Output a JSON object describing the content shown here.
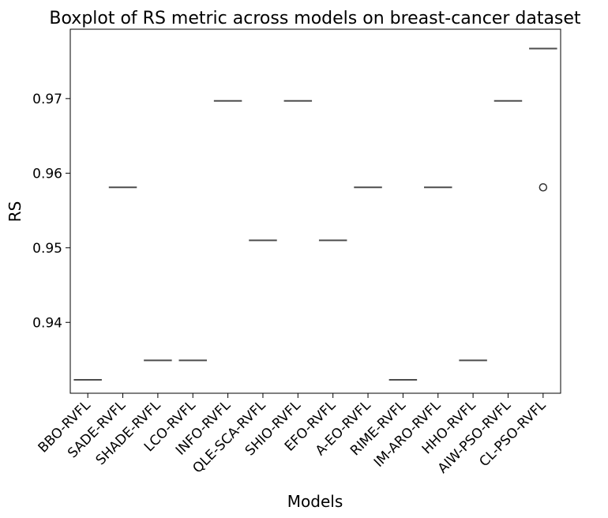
{
  "chart_data": {
    "type": "box",
    "title": "Boxplot of RS metric across models on breast-cancer dataset",
    "xlabel": "Models",
    "ylabel": "RS",
    "ylim": [
      0.9305,
      0.9793
    ],
    "yticks": [
      "0.94",
      "0.95",
      "0.96",
      "0.97"
    ],
    "ytick_values": [
      0.94,
      0.95,
      0.96,
      0.97
    ],
    "categories": [
      "BBO-RVFL",
      "SADE-RVFL",
      "SHADE-RVFL",
      "LCO-RVFL",
      "INFO-RVFL",
      "QLE-SCA-RVFL",
      "SHIO-RVFL",
      "EFO-RVFL",
      "A-EO-RVFL",
      "RIME-RVFL",
      "IM-ARO-RVFL",
      "HHO-RVFL",
      "AIW-PSO-RVFL",
      "CL-PSO-RVFL"
    ],
    "values": [
      0.9323,
      0.9581,
      0.9349,
      0.9349,
      0.9697,
      0.951,
      0.9697,
      0.951,
      0.9581,
      0.9323,
      0.9581,
      0.9349,
      0.9697,
      0.9767
    ],
    "outliers": [
      {
        "category": "CL-PSO-RVFL",
        "value": 0.9581
      }
    ],
    "grid": false,
    "line_color": "#4d4d4d",
    "box_color": "#1f77b4"
  }
}
